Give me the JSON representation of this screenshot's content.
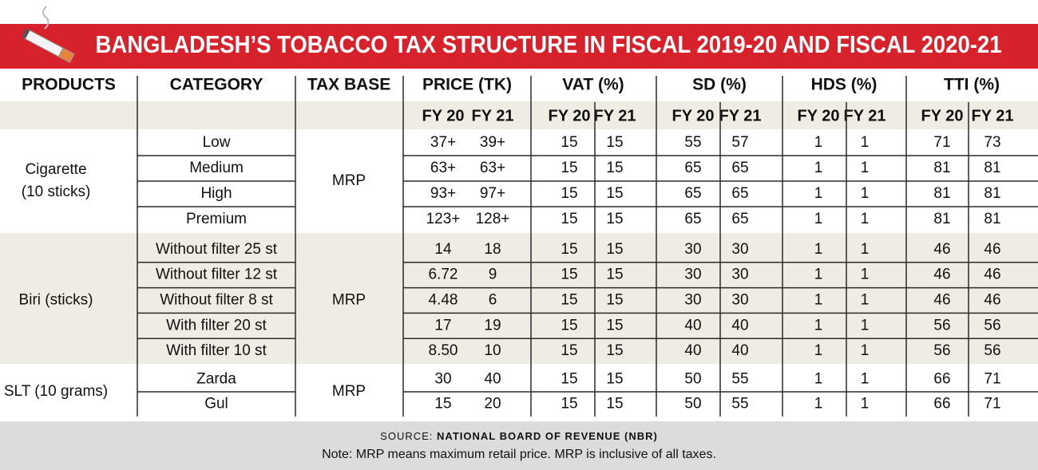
{
  "title": "BANGLADESH’S TOBACCO TAX STRUCTURE IN FISCAL 2019-20 AND FISCAL 2020-21",
  "headers": [
    "PRODUCTS",
    "CATEGORY",
    "TAX BASE",
    "PRICE (TK)",
    "VAT (%)",
    "SD (%)",
    "HDS (%)",
    "TTI (%)"
  ],
  "subheaders": [
    "FY 20",
    "FY 21",
    "FY 20",
    "FY 21",
    "FY 20",
    "FY 21",
    "FY 20",
    "FY 21",
    "FY 20",
    "FY 21"
  ],
  "groups": [
    {
      "product": [
        "Cigarette",
        "(10 sticks)"
      ],
      "tax_base": "MRP",
      "rows": [
        {
          "category": "Low",
          "values": [
            "37+",
            "39+",
            "15",
            "15",
            "55",
            "57",
            "1",
            "1",
            "71",
            "73"
          ]
        },
        {
          "category": "Medium",
          "values": [
            "63+",
            "63+",
            "15",
            "15",
            "65",
            "65",
            "1",
            "1",
            "81",
            "81"
          ]
        },
        {
          "category": "High",
          "values": [
            "93+",
            "97+",
            "15",
            "15",
            "65",
            "65",
            "1",
            "1",
            "81",
            "81"
          ]
        },
        {
          "category": "Premium",
          "values": [
            "123+",
            "128+",
            "15",
            "15",
            "65",
            "65",
            "1",
            "1",
            "81",
            "81"
          ]
        }
      ]
    },
    {
      "product": [
        "Biri (sticks)"
      ],
      "tax_base": "MRP",
      "rows": [
        {
          "category": "Without filter 25 st",
          "values": [
            "14",
            "18",
            "15",
            "15",
            "30",
            "30",
            "1",
            "1",
            "46",
            "46"
          ]
        },
        {
          "category": "Without filter 12 st",
          "values": [
            "6.72",
            "9",
            "15",
            "15",
            "30",
            "30",
            "1",
            "1",
            "46",
            "46"
          ]
        },
        {
          "category": "Without filter 8 st",
          "values": [
            "4.48",
            "6",
            "15",
            "15",
            "30",
            "30",
            "1",
            "1",
            "46",
            "46"
          ]
        },
        {
          "category": "With filter 20 st",
          "values": [
            "17",
            "19",
            "15",
            "15",
            "40",
            "40",
            "1",
            "1",
            "56",
            "56"
          ]
        },
        {
          "category": "With filter 10 st",
          "values": [
            "8.50",
            "10",
            "15",
            "15",
            "40",
            "40",
            "1",
            "1",
            "56",
            "56"
          ]
        }
      ]
    },
    {
      "product": [
        "SLT (10 grams)"
      ],
      "tax_base": "MRP",
      "rows": [
        {
          "category": "Zarda",
          "values": [
            "30",
            "40",
            "15",
            "15",
            "50",
            "55",
            "1",
            "1",
            "66",
            "71"
          ]
        },
        {
          "category": "Gul",
          "values": [
            "15",
            "20",
            "15",
            "15",
            "50",
            "55",
            "1",
            "1",
            "66",
            "71"
          ]
        }
      ]
    }
  ],
  "source_label": "SOURCE:",
  "source": "NATIONAL BOARD OF REVENUE (NBR)",
  "note": "Note: MRP means maximum retail price. MRP is inclusive of all taxes."
}
